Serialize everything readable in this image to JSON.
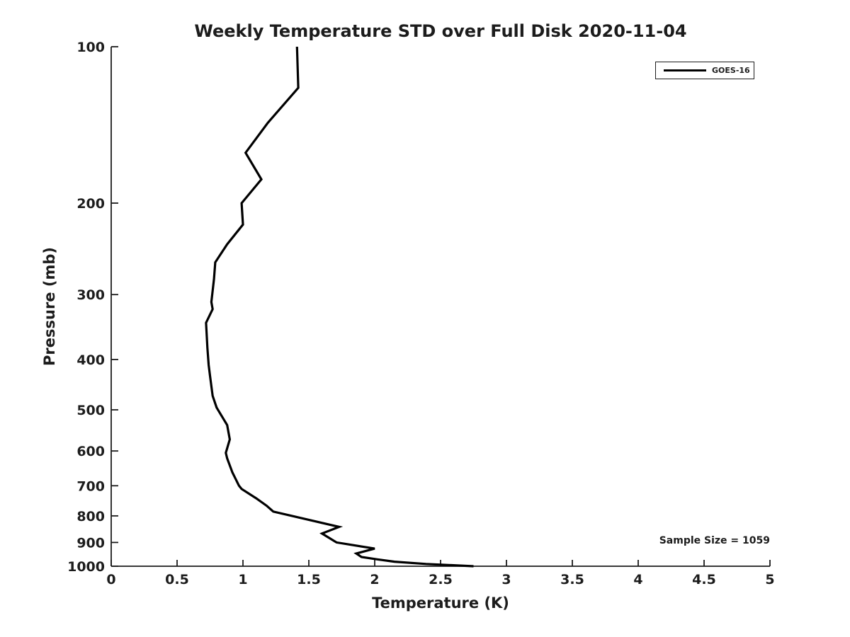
{
  "title": "Weekly Temperature STD over Full Disk 2020-11-04",
  "colors": {
    "background": "#ffffff",
    "line": "#000000",
    "text": "#1c1c1c",
    "axis": "#1c1c1c"
  },
  "legend": {
    "position": "upper right",
    "entries": [
      {
        "label": "GOES-16",
        "color": "#000000"
      }
    ]
  },
  "annotations": {
    "sample_size": "Sample Size = 1059"
  },
  "chart_data": {
    "type": "line",
    "title": "Weekly Temperature STD over Full Disk 2020-11-04",
    "xlabel": "Temperature (K)",
    "ylabel": "Pressure (mb)",
    "annotation": "Sample Size = 1059",
    "xlim": [
      0,
      5
    ],
    "ylim": [
      100,
      1000
    ],
    "x_scale": "linear",
    "y_scale": "log",
    "y_inverted": true,
    "grid": false,
    "legend_position": "upper right",
    "x_ticks": [
      0,
      0.5,
      1,
      1.5,
      2,
      2.5,
      3,
      3.5,
      4,
      4.5,
      5
    ],
    "x_tick_labels": [
      "0",
      "0.5",
      "1",
      "1.5",
      "2",
      "2.5",
      "3",
      "3.5",
      "4",
      "4.5",
      "5"
    ],
    "y_ticks": [
      100,
      200,
      300,
      400,
      500,
      600,
      700,
      800,
      900,
      1000
    ],
    "y_tick_labels": [
      "100",
      "200",
      "300",
      "400",
      "500",
      "600",
      "700",
      "800",
      "900",
      "1000"
    ],
    "series": [
      {
        "name": "GOES-16",
        "color": "#000000",
        "line_width": 3.2,
        "x_name": "temperature_std_k",
        "y_name": "pressure_mb",
        "points": [
          [
            1.41,
            100
          ],
          [
            1.42,
            120
          ],
          [
            1.19,
            140
          ],
          [
            1.02,
            160
          ],
          [
            1.14,
            180
          ],
          [
            0.99,
            200
          ],
          [
            1.0,
            220
          ],
          [
            0.88,
            240
          ],
          [
            0.79,
            260
          ],
          [
            0.78,
            280
          ],
          [
            0.76,
            310
          ],
          [
            0.77,
            320
          ],
          [
            0.72,
            340
          ],
          [
            0.73,
            380
          ],
          [
            0.74,
            410
          ],
          [
            0.75,
            430
          ],
          [
            0.77,
            470
          ],
          [
            0.8,
            495
          ],
          [
            0.88,
            535
          ],
          [
            0.9,
            570
          ],
          [
            0.87,
            605
          ],
          [
            0.88,
            620
          ],
          [
            0.92,
            660
          ],
          [
            0.97,
            700
          ],
          [
            0.99,
            710
          ],
          [
            1.1,
            740
          ],
          [
            1.18,
            765
          ],
          [
            1.23,
            785
          ],
          [
            1.73,
            840
          ],
          [
            1.6,
            865
          ],
          [
            1.71,
            900
          ],
          [
            2.0,
            925
          ],
          [
            1.86,
            945
          ],
          [
            1.9,
            960
          ],
          [
            2.02,
            970
          ],
          [
            2.15,
            980
          ],
          [
            2.39,
            990
          ],
          [
            2.75,
            1000
          ]
        ]
      }
    ]
  }
}
